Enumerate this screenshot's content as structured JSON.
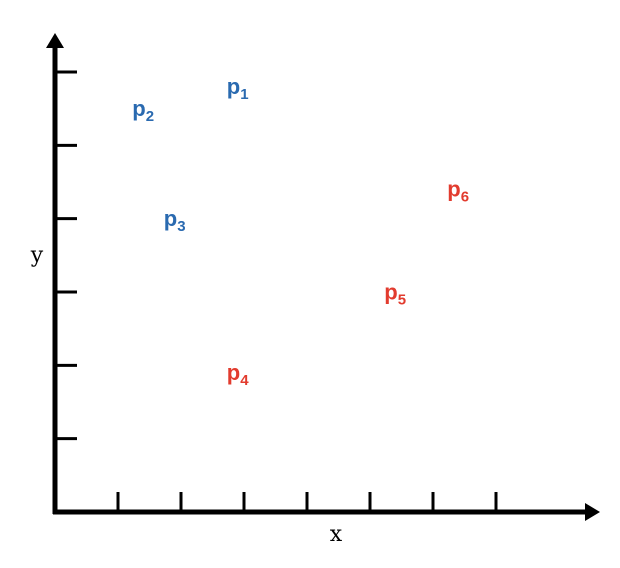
{
  "chart_data": {
    "type": "scatter",
    "title": "",
    "xlabel": "x",
    "ylabel": "y",
    "xlim": [
      0,
      8
    ],
    "ylim": [
      0,
      6
    ],
    "x_ticks": [
      1,
      2,
      3,
      4,
      5,
      6,
      7
    ],
    "y_ticks": [
      1,
      2,
      3,
      4,
      5,
      6
    ],
    "grid": false,
    "legend": "none",
    "series": [
      {
        "color": "#2a6ab0",
        "points": [
          {
            "label": "p",
            "sub": "1",
            "x": 2.9,
            "y": 5.7
          },
          {
            "label": "p",
            "sub": "2",
            "x": 1.4,
            "y": 5.4
          },
          {
            "label": "p",
            "sub": "3",
            "x": 1.9,
            "y": 3.9
          }
        ]
      },
      {
        "color": "#e23b2e",
        "points": [
          {
            "label": "p",
            "sub": "4",
            "x": 2.9,
            "y": 1.8
          },
          {
            "label": "p",
            "sub": "5",
            "x": 5.4,
            "y": 2.9
          },
          {
            "label": "p",
            "sub": "6",
            "x": 6.4,
            "y": 4.3
          }
        ]
      }
    ]
  }
}
